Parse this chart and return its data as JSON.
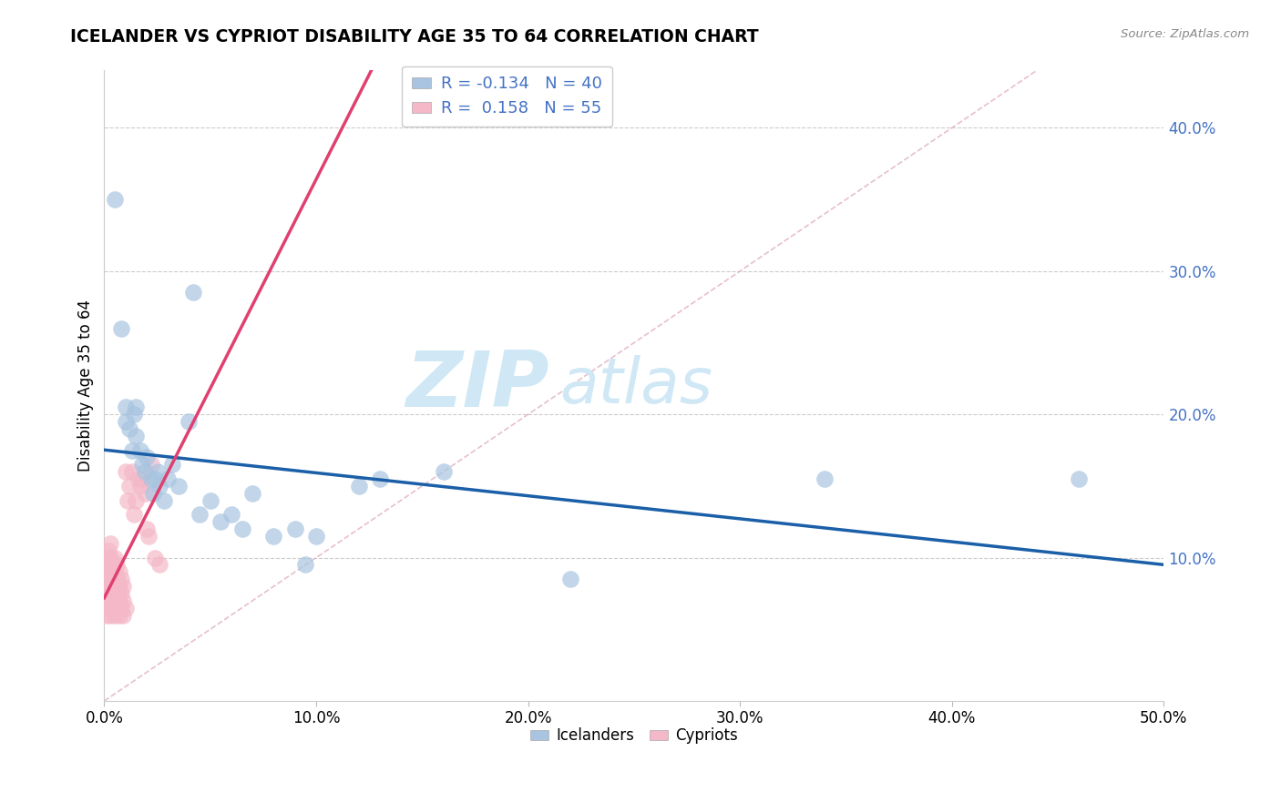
{
  "title": "ICELANDER VS CYPRIOT DISABILITY AGE 35 TO 64 CORRELATION CHART",
  "source": "Source: ZipAtlas.com",
  "ylabel": "Disability Age 35 to 64",
  "xlim": [
    0.0,
    0.5
  ],
  "ylim": [
    0.0,
    0.44
  ],
  "xticklabels": [
    "0.0%",
    "10.0%",
    "20.0%",
    "30.0%",
    "40.0%",
    "50.0%"
  ],
  "xtick_vals": [
    0.0,
    0.1,
    0.2,
    0.3,
    0.4,
    0.5
  ],
  "yticks_right": [
    0.1,
    0.2,
    0.3,
    0.4
  ],
  "yticklabels_right": [
    "10.0%",
    "20.0%",
    "30.0%",
    "40.0%"
  ],
  "icelander_color": "#a8c4e0",
  "cypriot_color": "#f4b8c8",
  "icelander_line_color": "#1a5fa8",
  "cypriot_line_color": "#e04070",
  "diagonal_color": "#e0b0c0",
  "watermark_color": "#d0e8f5",
  "icelander_r": -0.134,
  "icelander_n": 40,
  "cypriot_r": 0.158,
  "cypriot_n": 55,
  "icelanders_x": [
    0.005,
    0.008,
    0.01,
    0.01,
    0.012,
    0.013,
    0.014,
    0.015,
    0.015,
    0.017,
    0.018,
    0.019,
    0.02,
    0.022,
    0.023,
    0.024,
    0.025,
    0.026,
    0.028,
    0.03,
    0.032,
    0.035,
    0.04,
    0.042,
    0.045,
    0.05,
    0.055,
    0.06,
    0.065,
    0.07,
    0.08,
    0.09,
    0.095,
    0.1,
    0.12,
    0.13,
    0.16,
    0.22,
    0.34,
    0.46
  ],
  "icelanders_y": [
    0.35,
    0.26,
    0.205,
    0.195,
    0.19,
    0.175,
    0.2,
    0.185,
    0.205,
    0.175,
    0.165,
    0.16,
    0.17,
    0.155,
    0.145,
    0.155,
    0.16,
    0.15,
    0.14,
    0.155,
    0.165,
    0.15,
    0.195,
    0.285,
    0.13,
    0.14,
    0.125,
    0.13,
    0.12,
    0.145,
    0.115,
    0.12,
    0.095,
    0.115,
    0.15,
    0.155,
    0.16,
    0.085,
    0.155,
    0.155
  ],
  "cypriots_x": [
    0.001,
    0.001,
    0.001,
    0.001,
    0.001,
    0.002,
    0.002,
    0.002,
    0.002,
    0.002,
    0.003,
    0.003,
    0.003,
    0.003,
    0.003,
    0.003,
    0.004,
    0.004,
    0.004,
    0.004,
    0.005,
    0.005,
    0.005,
    0.005,
    0.005,
    0.006,
    0.006,
    0.006,
    0.006,
    0.007,
    0.007,
    0.007,
    0.007,
    0.008,
    0.008,
    0.008,
    0.009,
    0.009,
    0.009,
    0.01,
    0.01,
    0.011,
    0.012,
    0.013,
    0.014,
    0.015,
    0.016,
    0.017,
    0.018,
    0.019,
    0.02,
    0.021,
    0.022,
    0.024,
    0.026
  ],
  "cypriots_y": [
    0.06,
    0.07,
    0.08,
    0.09,
    0.1,
    0.065,
    0.075,
    0.085,
    0.095,
    0.105,
    0.06,
    0.07,
    0.08,
    0.09,
    0.1,
    0.11,
    0.065,
    0.075,
    0.085,
    0.095,
    0.06,
    0.07,
    0.08,
    0.09,
    0.1,
    0.065,
    0.075,
    0.085,
    0.095,
    0.06,
    0.07,
    0.08,
    0.09,
    0.065,
    0.075,
    0.085,
    0.06,
    0.07,
    0.08,
    0.065,
    0.16,
    0.14,
    0.15,
    0.16,
    0.13,
    0.14,
    0.155,
    0.15,
    0.155,
    0.145,
    0.12,
    0.115,
    0.165,
    0.1,
    0.095
  ]
}
